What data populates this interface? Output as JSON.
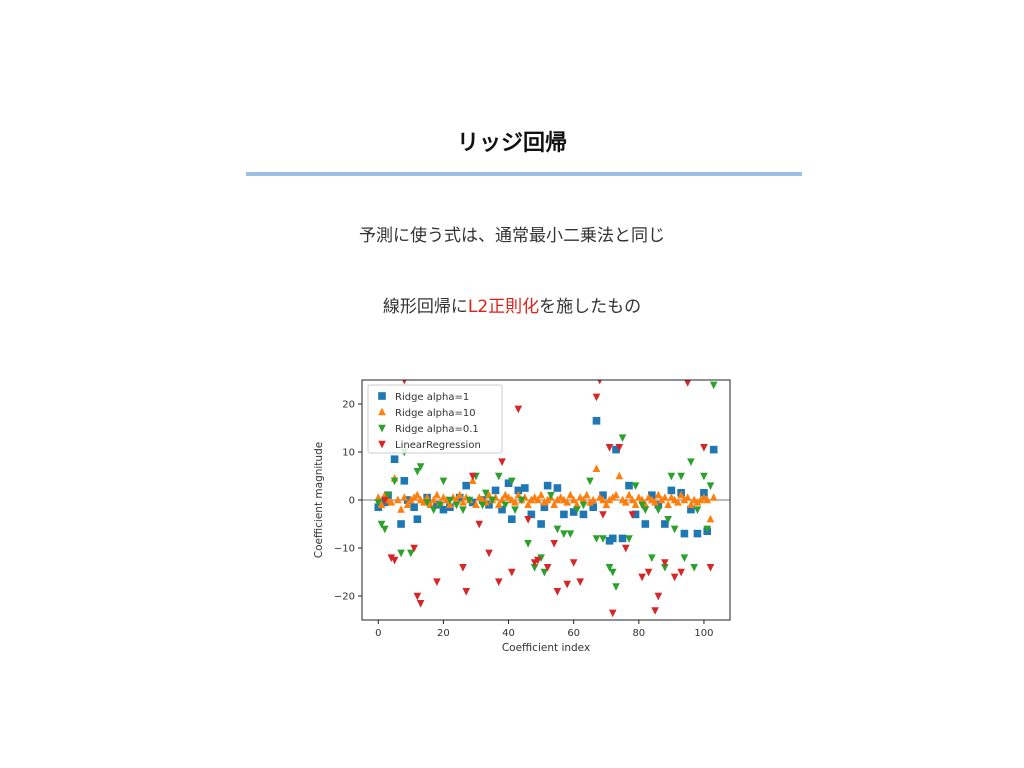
{
  "slide": {
    "title": "リッジ回帰",
    "line1": "予測に使う式は、通常最小二乗法と同じ",
    "line2_pre": "線形回帰に",
    "line2_highlight": "L2正則化",
    "line2_post": "を施したもの",
    "highlight_color": "#e0201b",
    "rule_color": "#9fc0e6"
  },
  "chart_data": {
    "type": "scatter",
    "xlabel": "Coefficient index",
    "ylabel": "Coefficient magnitude",
    "xlim": [
      -5,
      108
    ],
    "ylim": [
      -25,
      25
    ],
    "xticks": [
      0,
      20,
      40,
      60,
      80,
      100
    ],
    "yticks": [
      -20,
      -10,
      0,
      10,
      20
    ],
    "grid": false,
    "legend_position": "top-left",
    "series": [
      {
        "name": "Ridge alpha=1",
        "marker": "square",
        "color": "#1f77b4",
        "x": [
          0,
          2,
          3,
          5,
          7,
          8,
          9,
          11,
          12,
          15,
          18,
          20,
          22,
          25,
          27,
          29,
          32,
          34,
          36,
          38,
          40,
          41,
          43,
          45,
          47,
          50,
          51,
          52,
          55,
          57,
          60,
          63,
          66,
          67,
          69,
          71,
          72,
          73,
          75,
          77,
          79,
          82,
          84,
          86,
          88,
          90,
          93,
          94,
          96,
          98,
          100,
          101,
          103
        ],
        "y": [
          -1.5,
          -0.5,
          1,
          8.5,
          -5,
          4,
          0,
          -1.5,
          -4,
          0.5,
          -1,
          -2,
          -1.5,
          0.5,
          3,
          -0.5,
          0,
          -1,
          2,
          -2,
          3.5,
          -4,
          2,
          2.5,
          -3,
          -5,
          -1.5,
          3,
          2.5,
          -3,
          -2.5,
          -3,
          -1.5,
          16.5,
          1,
          -8.5,
          -8,
          10.5,
          -8,
          3,
          -3,
          -5,
          1,
          -1,
          -5,
          2,
          1.5,
          -7,
          -2,
          -7,
          1.5,
          -6.5,
          10.5
        ]
      },
      {
        "name": "Ridge alpha=10",
        "marker": "triangle-up",
        "color": "#ff7f0e",
        "x": [
          0,
          1,
          2,
          3,
          4,
          5,
          6,
          7,
          8,
          9,
          10,
          11,
          12,
          13,
          14,
          15,
          16,
          17,
          18,
          19,
          20,
          21,
          22,
          23,
          24,
          25,
          26,
          27,
          28,
          29,
          30,
          31,
          32,
          33,
          34,
          35,
          36,
          37,
          38,
          39,
          40,
          41,
          42,
          43,
          44,
          45,
          46,
          47,
          48,
          49,
          50,
          51,
          52,
          53,
          54,
          55,
          56,
          57,
          58,
          59,
          60,
          61,
          62,
          63,
          64,
          65,
          66,
          67,
          68,
          69,
          70,
          71,
          72,
          73,
          74,
          75,
          76,
          77,
          78,
          79,
          80,
          81,
          82,
          83,
          84,
          85,
          86,
          87,
          88,
          89,
          90,
          91,
          92,
          93,
          94,
          95,
          96,
          97,
          98,
          99,
          100,
          101,
          102,
          103
        ],
        "y": [
          0.5,
          -1,
          1,
          0,
          -0.5,
          4.5,
          0,
          -2,
          0.5,
          -1,
          0,
          0.5,
          1,
          0,
          -0.5,
          0.5,
          -1,
          0,
          1,
          -0.5,
          0.5,
          0,
          -1,
          0.5,
          0,
          1,
          -0.5,
          0.5,
          0,
          4,
          -1,
          0.5,
          0,
          -0.5,
          1,
          0,
          0.5,
          -1,
          0,
          1,
          0.5,
          0,
          -0.5,
          1,
          0,
          0.5,
          -1,
          0,
          0.5,
          0,
          1,
          -0.5,
          0,
          0.5,
          -1,
          0,
          0.5,
          0,
          -0.5,
          1,
          0,
          -1,
          0.5,
          0,
          1,
          -0.5,
          0,
          6.5,
          0.5,
          0,
          -1,
          0,
          0.5,
          1,
          5,
          0,
          -0.5,
          1,
          0,
          -1,
          0.5,
          0,
          -1,
          0.5,
          0,
          -0.5,
          1,
          0,
          0.5,
          -1,
          0.5,
          0,
          -0.5,
          1,
          0,
          0.5,
          -1,
          0,
          -0.5,
          0,
          0.5,
          0,
          -4,
          0.5
        ]
      },
      {
        "name": "Ridge alpha=0.1",
        "marker": "triangle-down",
        "color": "#2ca02c",
        "x": [
          0,
          1,
          2,
          3,
          5,
          7,
          8,
          10,
          12,
          13,
          15,
          17,
          19,
          20,
          22,
          24,
          26,
          28,
          30,
          32,
          33,
          35,
          37,
          39,
          41,
          42,
          44,
          46,
          48,
          50,
          51,
          53,
          55,
          57,
          59,
          61,
          63,
          65,
          67,
          69,
          71,
          72,
          73,
          75,
          77,
          79,
          81,
          82,
          84,
          86,
          88,
          89,
          90,
          91,
          93,
          94,
          96,
          97,
          98,
          100,
          101,
          102,
          103
        ],
        "y": [
          -0.5,
          -5,
          -6,
          1,
          4,
          -11,
          10,
          -11,
          6,
          7,
          -0.5,
          -2,
          -1,
          4,
          0,
          -1,
          -2,
          0,
          5,
          -1,
          1.5,
          0,
          5,
          -1,
          4,
          -2,
          0,
          -9,
          -14,
          -12,
          -15,
          1,
          -6,
          -7,
          -7,
          -2,
          -1,
          4,
          -8,
          -8,
          -14,
          -15,
          -18,
          13,
          -8,
          3,
          -1,
          -2,
          -12,
          -2,
          -14,
          -4,
          5,
          -6,
          5,
          -12,
          8,
          -14,
          -2,
          5,
          -6,
          3,
          24
        ]
      },
      {
        "name": "LinearRegression",
        "marker": "triangle-down",
        "color": "#d62728",
        "x": [
          2,
          4,
          5,
          8,
          11,
          12,
          13,
          18,
          26,
          27,
          29,
          31,
          34,
          37,
          38,
          41,
          43,
          46,
          48,
          49,
          52,
          54,
          55,
          58,
          60,
          62,
          67,
          68,
          69,
          71,
          72,
          74,
          76,
          78,
          81,
          83,
          85,
          86,
          88,
          91,
          93,
          95,
          100,
          102
        ],
        "y": [
          0,
          -12,
          -12.5,
          25,
          -10,
          -20,
          -21.5,
          -17,
          -14,
          -19,
          5,
          -5,
          -11,
          -17,
          8,
          -15,
          19,
          -4,
          -13,
          -12.5,
          -14,
          -9,
          -19,
          -17.5,
          -13,
          -17,
          21.5,
          25,
          -3,
          11,
          -23.5,
          11,
          -10,
          -3,
          -16,
          -15,
          -23,
          -20,
          -13,
          -16,
          -15,
          24.5,
          11,
          -14
        ]
      }
    ]
  }
}
